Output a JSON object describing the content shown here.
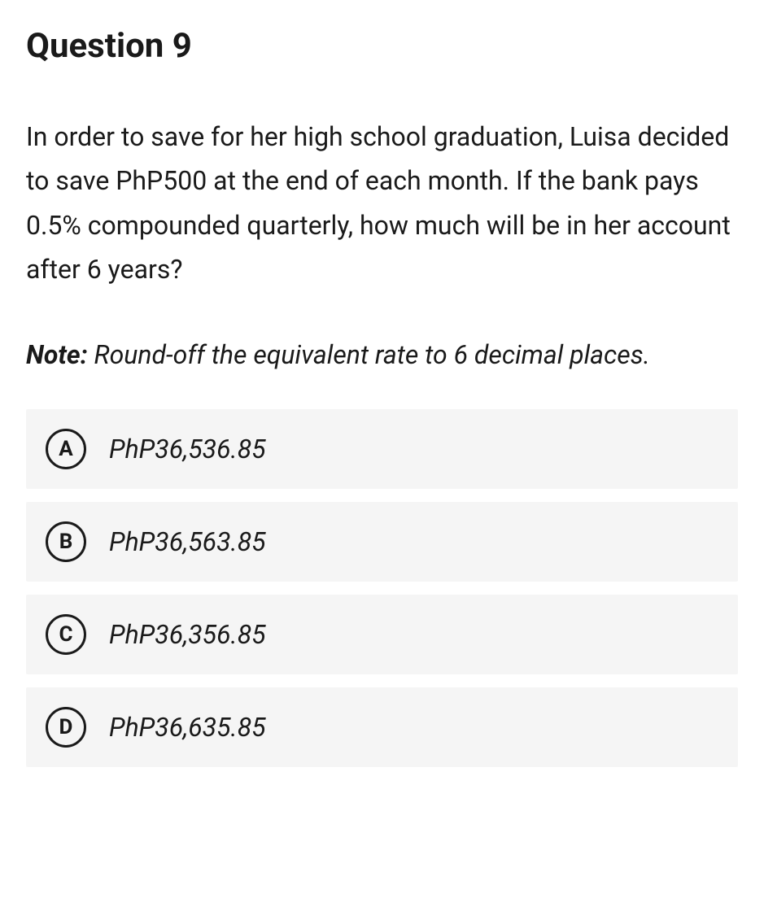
{
  "question": {
    "title": "Question 9",
    "body": "In order to save for her high school graduation, Luisa decided to save PhP500 at the end of each month. If the bank pays 0.5% compounded quarterly, how much will be in her account after 6 years?",
    "note_label": "Note:",
    "note_text": " Round-off the equivalent rate to 6 decimal places."
  },
  "options": [
    {
      "letter": "A",
      "text": "PhP36,536.85"
    },
    {
      "letter": "B",
      "text": "PhP36,563.85"
    },
    {
      "letter": "C",
      "text": "PhP36,356.85"
    },
    {
      "letter": "D",
      "text": "PhP36,635.85"
    }
  ],
  "colors": {
    "background": "#ffffff",
    "option_background": "#f5f5f5",
    "text": "#1a1a1a",
    "border": "#1a1a1a"
  }
}
